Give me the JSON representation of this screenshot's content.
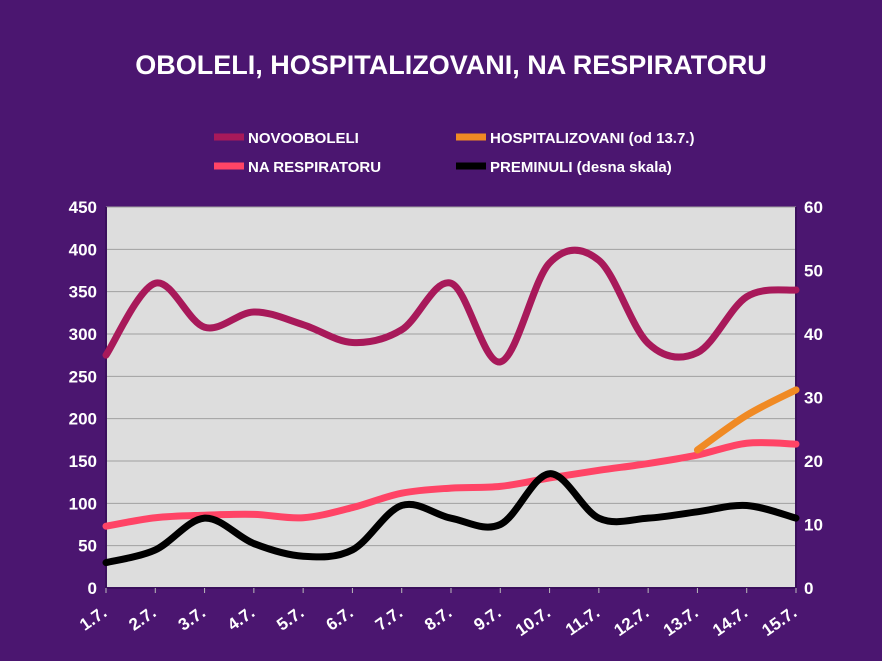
{
  "chart_data": {
    "type": "line",
    "title": "OBOLELI, HOSPITALIZOVANI, NA RESPIRATORU",
    "categories": [
      "1.7.",
      "2.7.",
      "3.7.",
      "4.7.",
      "5.7.",
      "6.7.",
      "7.7.",
      "8.7.",
      "9.7.",
      "10.7.",
      "11.7.",
      "12.7.",
      "13.7.",
      "14.7.",
      "15.7."
    ],
    "y_left": {
      "min": 0,
      "max": 450,
      "step": 50,
      "ticks": [
        "0",
        "50",
        "100",
        "150",
        "200",
        "250",
        "300",
        "350",
        "400",
        "450"
      ]
    },
    "y_right": {
      "min": 0,
      "max": 60,
      "step": 10,
      "ticks": [
        "0",
        "10",
        "20",
        "30",
        "40",
        "50",
        "60"
      ]
    },
    "grid": true,
    "smooth": true,
    "legend_position": "top",
    "series": [
      {
        "name": "NOVOOBOLELI",
        "axis": "left",
        "color": "#a8195a",
        "values": [
          275,
          360,
          308,
          326,
          311,
          290,
          305,
          360,
          267,
          384,
          387,
          289,
          278,
          344,
          352
        ]
      },
      {
        "name": "HOSPITALIZOVANI (od 13.7.)",
        "axis": "left",
        "color": "#f08a24",
        "values": [
          null,
          null,
          null,
          null,
          null,
          null,
          null,
          null,
          null,
          null,
          null,
          null,
          163,
          204,
          234
        ]
      },
      {
        "name": "NA RESPIRATORU",
        "axis": "left",
        "color": "#ff4466",
        "values": [
          73,
          83,
          86,
          87,
          83,
          95,
          112,
          118,
          120,
          130,
          139,
          147,
          157,
          171,
          170
        ]
      },
      {
        "name": "PREMINULI (desna skala)",
        "axis": "right",
        "color": "#000000",
        "values": [
          4,
          6,
          11,
          7,
          5,
          6,
          13,
          11,
          10,
          18,
          11,
          11,
          12,
          13,
          11
        ]
      }
    ],
    "colors": {
      "background": "#4b1670",
      "plot_area": "#dddddd",
      "gridline": "#a0a0a0"
    }
  }
}
